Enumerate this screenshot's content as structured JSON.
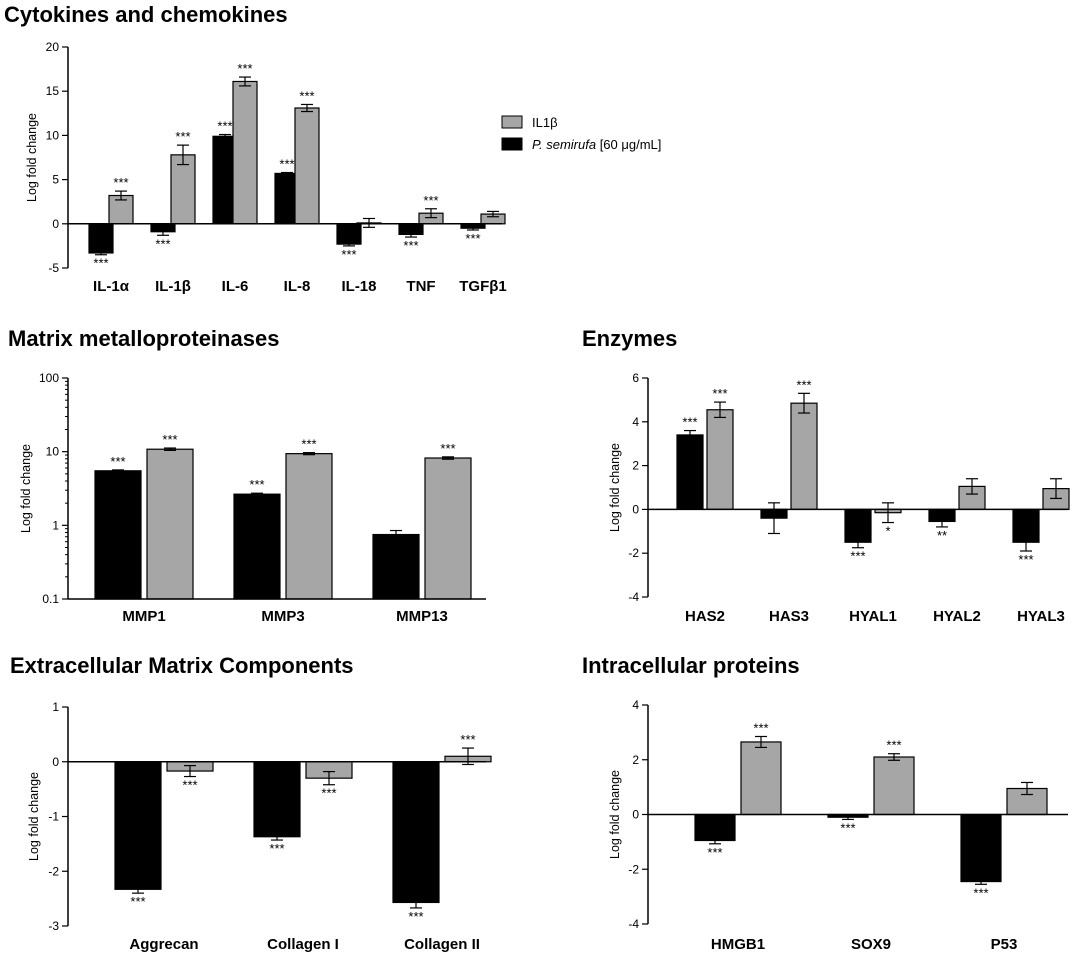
{
  "colors": {
    "series1": "#000000",
    "series2": "#a6a6a6",
    "axis": "#000000"
  },
  "legend": {
    "series2_label": "IL1β",
    "series1_italic": "P. semirufa",
    "series1_rest": " [60 μg/mL]"
  },
  "chart_data": [
    {
      "id": "cytokines",
      "type": "bar",
      "title": "Cytokines and chemokines",
      "ylabel": "Log fold change",
      "scale": "linear",
      "ylim": [
        -5,
        20
      ],
      "yticks": [
        -5,
        0,
        5,
        10,
        15,
        20
      ],
      "ytick_labels": [
        "-5",
        "0",
        "5",
        "10",
        "15",
        "20"
      ],
      "categories": [
        "IL-1α",
        "IL-1β",
        "IL-6",
        "IL-8",
        "IL-18",
        "TNF",
        "TGFβ1"
      ],
      "series": [
        {
          "name": "P. semirufa [60 μg/mL]",
          "values": [
            -3.3,
            -0.9,
            9.9,
            5.7,
            -2.3,
            -1.2,
            -0.5
          ],
          "errors": [
            0.2,
            0.4,
            0.2,
            0.1,
            0.2,
            0.3,
            0.2
          ],
          "sig": [
            "***",
            "***",
            "***",
            "***",
            "***",
            "***",
            "***"
          ]
        },
        {
          "name": "IL1β",
          "values": [
            3.2,
            7.8,
            16.1,
            13.1,
            0.1,
            1.2,
            1.1
          ],
          "errors": [
            0.5,
            1.1,
            0.5,
            0.4,
            0.5,
            0.5,
            0.3
          ],
          "sig": [
            "***",
            "***",
            "***",
            "***",
            "",
            "***",
            ""
          ]
        }
      ]
    },
    {
      "id": "mmp",
      "type": "bar",
      "title": "Matrix metalloproteinases",
      "ylabel": "Log fold change",
      "scale": "log",
      "ylim": [
        0.1,
        100
      ],
      "yticks": [
        0.1,
        1,
        10,
        100
      ],
      "ytick_labels": [
        "0.1",
        "1",
        "10",
        "100"
      ],
      "categories": [
        "MMP1",
        "MMP3",
        "MMP13"
      ],
      "series": [
        {
          "name": "P. semirufa [60 μg/mL]",
          "values": [
            5.5,
            2.65,
            0.75
          ],
          "errors": [
            0.15,
            0.08,
            0.1
          ],
          "sig": [
            "***",
            "***",
            ""
          ]
        },
        {
          "name": "IL1β",
          "values": [
            10.8,
            9.4,
            8.2
          ],
          "errors": [
            0.4,
            0.3,
            0.3
          ],
          "sig": [
            "***",
            "***",
            "***"
          ]
        }
      ]
    },
    {
      "id": "enzymes",
      "type": "bar",
      "title": "Enzymes",
      "ylabel": "Log fold change",
      "scale": "linear",
      "ylim": [
        -4,
        6
      ],
      "yticks": [
        -4,
        -2,
        0,
        2,
        4,
        6
      ],
      "ytick_labels": [
        "-4",
        "-2",
        "0",
        "2",
        "4",
        "6"
      ],
      "categories": [
        "HAS2",
        "HAS3",
        "HYAL1",
        "HYAL2",
        "HYAL3"
      ],
      "series": [
        {
          "name": "P. semirufa [60 μg/mL]",
          "values": [
            3.4,
            -0.4,
            -1.5,
            -0.55,
            -1.5
          ],
          "errors": [
            0.2,
            0.7,
            0.25,
            0.25,
            0.4
          ],
          "sig": [
            "***",
            "",
            "***",
            "**",
            "***"
          ]
        },
        {
          "name": "IL1β",
          "values": [
            4.55,
            4.85,
            -0.15,
            1.05,
            0.95
          ],
          "errors": [
            0.35,
            0.45,
            0.45,
            0.35,
            0.45
          ],
          "sig": [
            "***",
            "***",
            "*",
            "",
            ""
          ]
        }
      ]
    },
    {
      "id": "ecm",
      "type": "bar",
      "title": "Extracellular Matrix Components",
      "ylabel": "Log fold change",
      "scale": "linear",
      "ylim": [
        -3,
        1
      ],
      "yticks": [
        -3,
        -2,
        -1,
        0,
        1
      ],
      "ytick_labels": [
        "-3",
        "-2",
        "-1",
        "0",
        "1"
      ],
      "categories": [
        "Aggrecan",
        "Collagen I",
        "Collagen II"
      ],
      "series": [
        {
          "name": "P. semirufa [60 μg/mL]",
          "values": [
            -2.33,
            -1.37,
            -2.57
          ],
          "errors": [
            0.07,
            0.06,
            0.1
          ],
          "sig": [
            "***",
            "***",
            "***"
          ]
        },
        {
          "name": "IL1β",
          "values": [
            -0.17,
            -0.3,
            0.1
          ],
          "errors": [
            0.1,
            0.12,
            0.15
          ],
          "sig": [
            "***",
            "***",
            "***"
          ]
        }
      ]
    },
    {
      "id": "intracellular",
      "type": "bar",
      "title": "Intracellular proteins",
      "ylabel": "Log fold change",
      "scale": "linear",
      "ylim": [
        -4,
        4
      ],
      "yticks": [
        -4,
        -2,
        0,
        2,
        4
      ],
      "ytick_labels": [
        "-4",
        "-2",
        "0",
        "2",
        "4"
      ],
      "categories": [
        "HMGB1",
        "SOX9",
        "P53"
      ],
      "series": [
        {
          "name": "P. semirufa [60 μg/mL]",
          "values": [
            -0.95,
            -0.1,
            -2.45
          ],
          "errors": [
            0.12,
            0.08,
            0.1
          ],
          "sig": [
            "***",
            "***",
            "***"
          ]
        },
        {
          "name": "IL1β",
          "values": [
            2.65,
            2.1,
            0.95
          ],
          "errors": [
            0.2,
            0.12,
            0.22
          ],
          "sig": [
            "***",
            "***",
            ""
          ]
        }
      ]
    }
  ]
}
